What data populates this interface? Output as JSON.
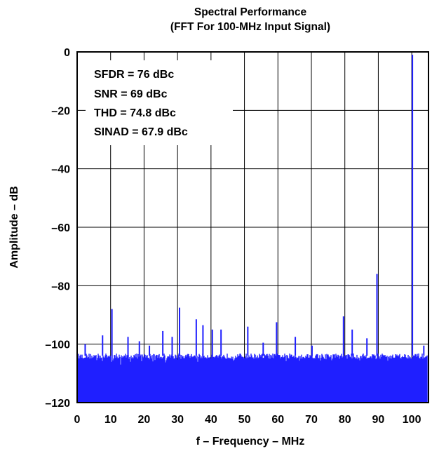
{
  "chart_data": {
    "type": "line",
    "title": "Spectral Performance",
    "subtitle": "(FFT For 100-MHz Input Signal)",
    "xlabel": "f – Frequency – MHz",
    "ylabel": "Amplitude – dB",
    "xlim": [
      0,
      105
    ],
    "ylim": [
      -120,
      0
    ],
    "x_ticks": [
      0,
      10,
      20,
      30,
      40,
      50,
      60,
      70,
      80,
      90,
      100
    ],
    "y_ticks": [
      0,
      -20,
      -40,
      -60,
      -80,
      -100,
      -120
    ],
    "x_tick_labels": [
      "0",
      "10",
      "20",
      "30",
      "40",
      "50",
      "60",
      "70",
      "80",
      "90",
      "100"
    ],
    "y_tick_labels": [
      "0",
      "–20",
      "–40",
      "–60",
      "–80",
      "–100",
      "–120"
    ],
    "grid": true,
    "series_color": "#1f1fff",
    "noise_floor": {
      "top_db": -105,
      "bottom_db": -120
    },
    "annotations": [
      "SFDR = 76 dBc",
      "SNR = 69 dBc",
      "THD = 74.8 dBc",
      "SINAD = 67.9 dBc"
    ],
    "spurs": [
      {
        "x": 100.2,
        "y": -1
      },
      {
        "x": 89.6,
        "y": -76
      },
      {
        "x": 10.4,
        "y": -88
      },
      {
        "x": 30.6,
        "y": -87.5
      },
      {
        "x": 79.6,
        "y": -90.5
      },
      {
        "x": 35.6,
        "y": -91.5
      },
      {
        "x": 59.6,
        "y": -92.5
      },
      {
        "x": 37.6,
        "y": -93.5
      },
      {
        "x": 51.0,
        "y": -94
      },
      {
        "x": 43.0,
        "y": -95
      },
      {
        "x": 40.4,
        "y": -95
      },
      {
        "x": 25.6,
        "y": -95.5
      },
      {
        "x": 82.2,
        "y": -95
      },
      {
        "x": 7.6,
        "y": -97
      },
      {
        "x": 15.2,
        "y": -97.5
      },
      {
        "x": 28.4,
        "y": -97.5
      },
      {
        "x": 65.2,
        "y": -97.5
      },
      {
        "x": 86.6,
        "y": -98
      },
      {
        "x": 18.6,
        "y": -99
      },
      {
        "x": 55.6,
        "y": -99.5
      },
      {
        "x": 2.4,
        "y": -100
      },
      {
        "x": 21.6,
        "y": -100.5
      },
      {
        "x": 70.2,
        "y": -100.5
      },
      {
        "x": 103.6,
        "y": -100.5
      }
    ]
  }
}
